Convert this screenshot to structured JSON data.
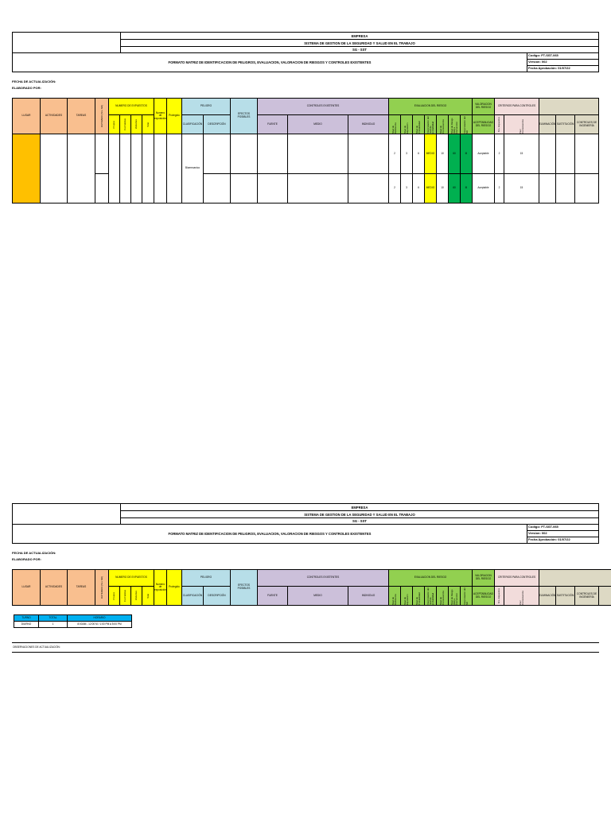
{
  "header": {
    "empresa": "EMPRESA",
    "sistema": "SISTEMA DE GESTION DE LA SEGURIDAD Y SALUD EN EL TRABAJO",
    "sigla": "SG - SST",
    "formato": "FORMATO MATRIZ DE IDENTIFICACION DE PELIGROS, EVALUACION, VALORACION DE RIESGOS Y CONTROLES EXISTENTES",
    "codigo": "Codigo: FT-SST-065",
    "version": "Version: 002",
    "fecha_aprobacion": "Fecha Aprobación: 01/07/22"
  },
  "meta": {
    "fecha_actualizacion": "FECHA DE ACTUALIZACIÓN:",
    "elaborado_por": "ELABORADO POR:"
  },
  "columns": {
    "lugar": "LUGAR",
    "actividades": "ACTIVIDADES",
    "tareas": "TAREAS",
    "rutinario": "RUTINARIO (SI o NO)",
    "numero_expuestos": "NUMERO DE EXPUESTOS",
    "propios": "Propios",
    "contratistas": "Contratistas",
    "visitantes": "Visitantes",
    "total": "Total",
    "numero_exposicion": "Numero de exposición",
    "protegido": "Protegido",
    "peligro": "PELIGRO",
    "clasificacion": "CLASIFICACIÓN",
    "descripcion": "DESCRIPCIÓN",
    "efectos": "EFECTOS POSIBLES",
    "controles_existentes": "CONTROLES EXISTENTES",
    "fuente": "FUENTE",
    "medio": "MEDIO",
    "individuo": "INDIVIDUO",
    "evaluacion": "EVALUACION DEL RIESGO",
    "ev_cols": [
      "Nivel de Deficiencia",
      "Nivel de Exposición",
      "Nivel de Probabilidad",
      "Interpretación del nivel de probabilidad",
      "Nivel de Consecuencia",
      "Nivel de Riesgo (NR) e intervención",
      "Interpretación del NR"
    ],
    "valoracion": "VALORACION DEL RIESGO",
    "aceptabilidad": "ACEPTABILIDAD DEL RIESGO",
    "criterios": "CRITERIOS PARA CONTROLES",
    "crit_cols": [
      "Nro. Expuestos",
      "Peor Consecuencia"
    ],
    "eliminacion": "ELIMINACIÓN",
    "sustitucion": "SUSTITUCIÓN",
    "controles_ingenieria": "CONTROLES DE INGENIERÍA"
  },
  "rows": [
    {
      "clasificacion": "Biomecanico",
      "nd": "2",
      "ne": "3",
      "np": "6",
      "interp_np": "MEDIO",
      "nc": "10",
      "nr": "60",
      "interp_nr": "III",
      "aceptabilidad": "Aceptable",
      "n2": "2",
      "n3": "15"
    },
    {
      "clasificacion": "",
      "nd": "2",
      "ne": "3",
      "np": "6",
      "interp_np": "MEDIO",
      "nc": "10",
      "nr": "60",
      "interp_nr": "III",
      "aceptabilidad": "Aceptable",
      "n2": "2",
      "n3": "15"
    }
  ],
  "small_table": {
    "headers": [
      "TURNO",
      "TOTAL",
      "HORARIO"
    ],
    "row": [
      "DIURNO",
      "1",
      "8:00AM - 12:00 M / 1:00 PM A 5:00 PM"
    ]
  },
  "observaciones": "OBSERVACIONES DE ACTUALIZACIÓN:",
  "colors": {
    "orange": "#f9bf8f",
    "yellow": "#ffff00",
    "blue": "#b7dee8",
    "purple": "#ccc0da",
    "green": "#92d050",
    "pink": "#f2dcdb",
    "khaki": "#ddd9c4",
    "gold": "#ffc000",
    "dark_green": "#00b050",
    "cyan": "#00b0f0"
  }
}
